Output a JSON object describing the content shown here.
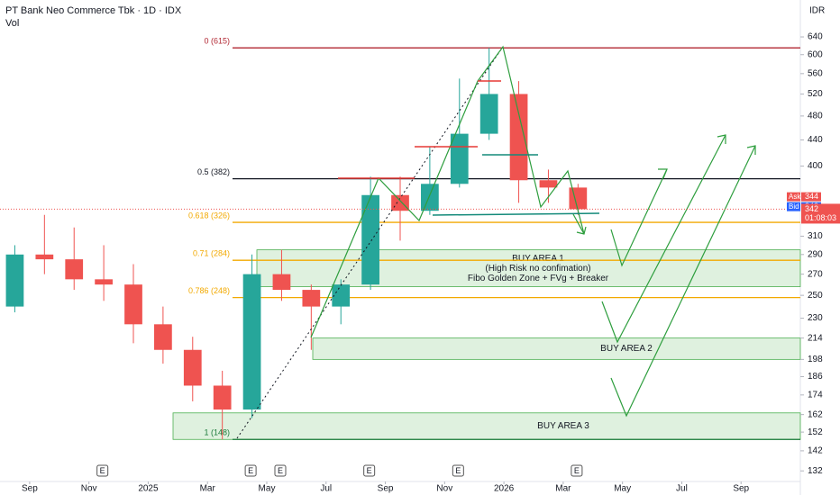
{
  "chart_data": {
    "type": "candlestick",
    "title": "PT Bank Neo Commerce Tbk · 1D · IDX",
    "subtitle": "Vol",
    "currency": "IDR",
    "log_scale": true,
    "x": [
      "2024-08",
      "2024-09",
      "2024-10",
      "2024-11",
      "2024-12",
      "2025-01",
      "2025-02",
      "2025-03",
      "2025-04",
      "2025-05",
      "2025-06",
      "2025-07",
      "2025-08",
      "2025-09",
      "2025-10",
      "2025-11",
      "2025-12",
      "2026-01",
      "2026-02",
      "2026-03"
    ],
    "open": [
      240,
      290,
      285,
      265,
      260,
      225,
      205,
      180,
      165,
      270,
      255,
      240,
      260,
      360,
      340,
      375,
      450,
      520,
      380,
      370
    ],
    "high": [
      300,
      335,
      320,
      300,
      280,
      240,
      215,
      190,
      290,
      295,
      260,
      265,
      385,
      385,
      430,
      550,
      615,
      545,
      395,
      375
    ],
    "low": [
      235,
      270,
      255,
      245,
      210,
      195,
      170,
      148,
      160,
      245,
      205,
      225,
      255,
      305,
      335,
      370,
      440,
      350,
      350,
      335
    ],
    "close": [
      290,
      285,
      265,
      260,
      225,
      205,
      180,
      165,
      270,
      255,
      240,
      260,
      360,
      340,
      375,
      450,
      520,
      380,
      370,
      342
    ],
    "up_color": "#26a69a",
    "down_color": "#ef5350",
    "xlim": [
      "2024-08",
      "2026-11"
    ],
    "xticks": [
      {
        "value": "2024-09",
        "label": "Sep"
      },
      {
        "value": "2024-11",
        "label": "Nov"
      },
      {
        "value": "2025-01",
        "label": "2025"
      },
      {
        "value": "2025-03",
        "label": "Mar"
      },
      {
        "value": "2025-05",
        "label": "May"
      },
      {
        "value": "2025-07",
        "label": "Jul"
      },
      {
        "value": "2025-09",
        "label": "Sep"
      },
      {
        "value": "2025-11",
        "label": "Nov"
      },
      {
        "value": "2026-01",
        "label": "2026"
      },
      {
        "value": "2026-03",
        "label": "Mar"
      },
      {
        "value": "2026-05",
        "label": "May"
      },
      {
        "value": "2026-07",
        "label": "Jul"
      },
      {
        "value": "2026-09",
        "label": "Sep"
      }
    ],
    "ylim": [
      127,
      732
    ],
    "yticks": [
      132,
      142,
      152,
      162,
      174,
      186,
      198,
      214,
      230,
      250,
      270,
      290,
      310,
      400,
      440,
      480,
      520,
      560,
      600,
      640
    ],
    "fib_levels": [
      {
        "label": "0 (615)",
        "value": 615,
        "color": "#b22833"
      },
      {
        "label": "0.5 (382)",
        "value": 382,
        "color": "#131722"
      },
      {
        "label": "0.618 (326)",
        "value": 326,
        "color": "#f2a900"
      },
      {
        "label": "0.71 (284)",
        "value": 284,
        "color": "#f2a900"
      },
      {
        "label": "0.786 (248)",
        "value": 248,
        "color": "#f2a900"
      },
      {
        "label": "1 (148)",
        "value": 148,
        "color": "#1b7a3a"
      }
    ],
    "zones": [
      {
        "lines": [
          "BUY AREA 1",
          "(High Risk no confimation)",
          "Fibo Golden Zone + FVg + Breaker"
        ],
        "top": 295,
        "bottom": 258
      },
      {
        "lines": [
          "BUY AREA 2"
        ],
        "top": 214,
        "bottom": 198
      },
      {
        "lines": [
          "BUY AREA 3"
        ],
        "top": 163,
        "bottom": 148
      }
    ],
    "events": [
      {
        "x": "2024-11",
        "label": "E"
      },
      {
        "x": "2025-04",
        "label": "E"
      },
      {
        "x": "2025-05",
        "label": "E"
      },
      {
        "x": "2025-08",
        "label": "E"
      },
      {
        "x": "2025-11",
        "label": "E"
      },
      {
        "x": "2026-03",
        "label": "E"
      }
    ],
    "quote": {
      "ask_label": "Ask",
      "ask": 344,
      "bid_label": "Bid",
      "bid": 342,
      "last": 342,
      "countdown": "01:08:03"
    }
  }
}
